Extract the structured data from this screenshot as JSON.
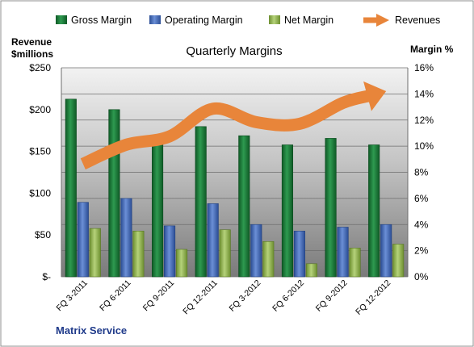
{
  "chart_data": {
    "type": "bar",
    "title": "Quarterly Margins",
    "company": "Matrix Service",
    "left_axis": {
      "label_line1": "Revenue",
      "label_line2": "$millions",
      "ticks": [
        "$250",
        "$200",
        "$150",
        "$100",
        "$50",
        "$-"
      ],
      "range": [
        0,
        250
      ]
    },
    "right_axis": {
      "label": "Margin %",
      "ticks": [
        "16%",
        "14%",
        "12%",
        "10%",
        "8%",
        "6%",
        "4%",
        "2%",
        "0%"
      ],
      "range": [
        0,
        16
      ]
    },
    "categories": [
      "FQ 3-2011",
      "FQ 6-2011",
      "FQ 9-2011",
      "FQ 12-2011",
      "FQ 3-2012",
      "FQ 6-2012",
      "FQ 9-2012",
      "FQ 12-2012"
    ],
    "series": [
      {
        "name": "Gross Margin",
        "axis": "right",
        "color": "#1e7a3a",
        "values": [
          13.6,
          12.8,
          10.7,
          11.5,
          10.8,
          10.1,
          10.6,
          10.1
        ]
      },
      {
        "name": "Operating Margin",
        "axis": "right",
        "color": "#3f64b0",
        "values": [
          5.7,
          6.0,
          3.9,
          5.6,
          4.0,
          3.5,
          3.8,
          4.0
        ]
      },
      {
        "name": "Net Margin",
        "axis": "right",
        "color": "#8bb04a",
        "values": [
          3.7,
          3.5,
          2.1,
          3.6,
          2.7,
          1.0,
          2.2,
          2.5
        ]
      },
      {
        "name": "Revenues",
        "axis": "left",
        "type": "line",
        "color": "#e8853a",
        "values": [
          135,
          158,
          168,
          201,
          185,
          183,
          208,
          222
        ]
      }
    ],
    "legend": [
      "Gross Margin",
      "Operating Margin",
      "Net Margin",
      "Revenues"
    ],
    "legend_position": "top",
    "grid": true
  }
}
